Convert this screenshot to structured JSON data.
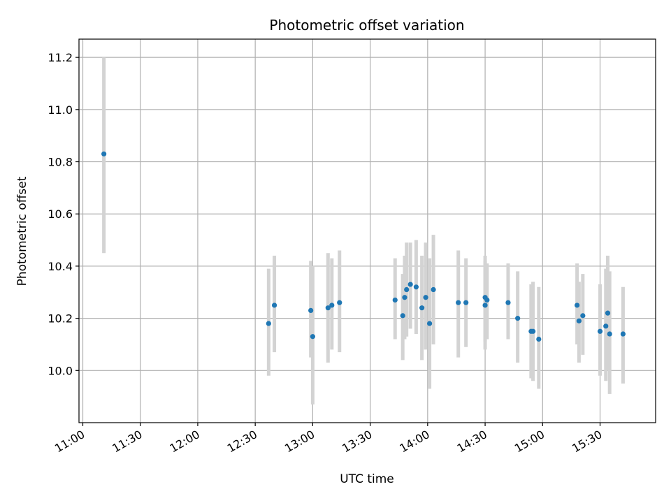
{
  "chart_data": {
    "type": "scatter",
    "title": "Photometric offset variation",
    "xlabel": "UTC time",
    "ylabel": "Photometric offset",
    "x_ticks": [
      "11:00",
      "11:30",
      "12:00",
      "12:30",
      "13:00",
      "13:30",
      "14:00",
      "14:30",
      "15:00",
      "15:30"
    ],
    "y_ticks": [
      "10.0",
      "10.2",
      "10.4",
      "10.6",
      "10.8",
      "11.0",
      "11.2"
    ],
    "xlim": [
      "10:58",
      "15:59"
    ],
    "ylim": [
      9.8,
      11.27
    ],
    "grid": true,
    "marker_color": "#1f77b4",
    "errorbar_color": "#d3d3d3",
    "points": [
      {
        "x": "11:11",
        "y": 10.83,
        "lo": 10.45,
        "hi": 11.2
      },
      {
        "x": "12:37",
        "y": 10.18,
        "lo": 9.98,
        "hi": 10.39
      },
      {
        "x": "12:40",
        "y": 10.25,
        "lo": 10.07,
        "hi": 10.44
      },
      {
        "x": "12:59",
        "y": 10.23,
        "lo": 10.05,
        "hi": 10.42
      },
      {
        "x": "13:00",
        "y": 10.13,
        "lo": 9.87,
        "hi": 10.4
      },
      {
        "x": "13:08",
        "y": 10.24,
        "lo": 10.03,
        "hi": 10.45
      },
      {
        "x": "13:10",
        "y": 10.25,
        "lo": 10.08,
        "hi": 10.43
      },
      {
        "x": "13:14",
        "y": 10.26,
        "lo": 10.07,
        "hi": 10.46
      },
      {
        "x": "13:43",
        "y": 10.27,
        "lo": 10.12,
        "hi": 10.43
      },
      {
        "x": "13:47",
        "y": 10.21,
        "lo": 10.04,
        "hi": 10.37
      },
      {
        "x": "13:48",
        "y": 10.28,
        "lo": 10.12,
        "hi": 10.44
      },
      {
        "x": "13:49",
        "y": 10.31,
        "lo": 10.13,
        "hi": 10.49
      },
      {
        "x": "13:51",
        "y": 10.33,
        "lo": 10.16,
        "hi": 10.49
      },
      {
        "x": "13:54",
        "y": 10.32,
        "lo": 10.14,
        "hi": 10.5
      },
      {
        "x": "13:57",
        "y": 10.24,
        "lo": 10.04,
        "hi": 10.44
      },
      {
        "x": "13:59",
        "y": 10.28,
        "lo": 10.08,
        "hi": 10.49
      },
      {
        "x": "14:01",
        "y": 10.18,
        "lo": 9.93,
        "hi": 10.43
      },
      {
        "x": "14:03",
        "y": 10.31,
        "lo": 10.1,
        "hi": 10.52
      },
      {
        "x": "14:16",
        "y": 10.26,
        "lo": 10.05,
        "hi": 10.46
      },
      {
        "x": "14:20",
        "y": 10.26,
        "lo": 10.09,
        "hi": 10.43
      },
      {
        "x": "14:30",
        "y": 10.25,
        "lo": 10.08,
        "hi": 10.42
      },
      {
        "x": "14:30",
        "y": 10.28,
        "lo": 10.11,
        "hi": 10.44
      },
      {
        "x": "14:31",
        "y": 10.27,
        "lo": 10.12,
        "hi": 10.41
      },
      {
        "x": "14:42",
        "y": 10.26,
        "lo": 10.12,
        "hi": 10.41
      },
      {
        "x": "14:47",
        "y": 10.2,
        "lo": 10.03,
        "hi": 10.38
      },
      {
        "x": "14:54",
        "y": 10.15,
        "lo": 9.97,
        "hi": 10.33
      },
      {
        "x": "14:55",
        "y": 10.15,
        "lo": 9.96,
        "hi": 10.34
      },
      {
        "x": "14:58",
        "y": 10.12,
        "lo": 9.93,
        "hi": 10.32
      },
      {
        "x": "15:18",
        "y": 10.25,
        "lo": 10.1,
        "hi": 10.41
      },
      {
        "x": "15:19",
        "y": 10.19,
        "lo": 10.03,
        "hi": 10.34
      },
      {
        "x": "15:21",
        "y": 10.21,
        "lo": 10.06,
        "hi": 10.37
      },
      {
        "x": "15:30",
        "y": 10.15,
        "lo": 9.98,
        "hi": 10.33
      },
      {
        "x": "15:33",
        "y": 10.17,
        "lo": 9.96,
        "hi": 10.39
      },
      {
        "x": "15:34",
        "y": 10.22,
        "lo": 10.0,
        "hi": 10.44
      },
      {
        "x": "15:35",
        "y": 10.14,
        "lo": 9.91,
        "hi": 10.38
      },
      {
        "x": "15:42",
        "y": 10.14,
        "lo": 9.95,
        "hi": 10.32
      }
    ]
  }
}
